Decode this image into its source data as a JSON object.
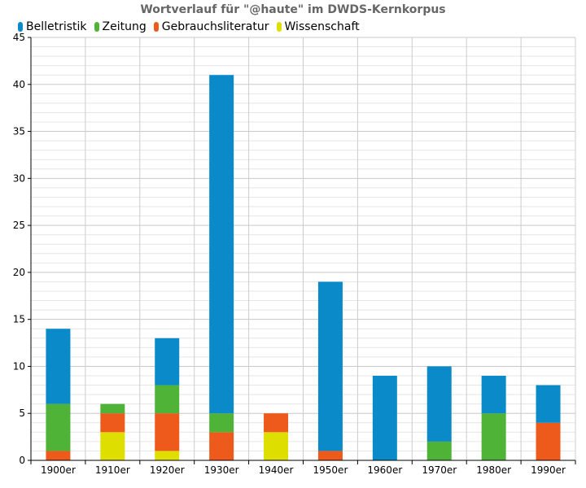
{
  "chart_data": {
    "type": "bar",
    "stacked": true,
    "title": "Wortverlauf für \"@haute\" im DWDS-Kernkorpus",
    "xlabel": "",
    "ylabel": "",
    "ylim": [
      0,
      45
    ],
    "yticks": [
      0,
      5,
      10,
      15,
      20,
      25,
      30,
      35,
      40,
      45
    ],
    "grid": true,
    "legend_position": "top-left",
    "categories": [
      "1900er",
      "1910er",
      "1920er",
      "1930er",
      "1940er",
      "1950er",
      "1960er",
      "1970er",
      "1980er",
      "1990er"
    ],
    "series": [
      {
        "name": "Belletristik",
        "color": "#0a8ac9",
        "values": [
          8,
          0,
          5,
          36,
          0,
          18,
          9,
          8,
          4,
          4
        ]
      },
      {
        "name": "Zeitung",
        "color": "#4fb337",
        "values": [
          5,
          1,
          3,
          2,
          0,
          0,
          0,
          2,
          5,
          0
        ]
      },
      {
        "name": "Gebrauchsliteratur",
        "color": "#ee5a1c",
        "values": [
          1,
          2,
          4,
          3,
          2,
          1,
          0,
          0,
          0,
          4
        ]
      },
      {
        "name": "Wissenschaft",
        "color": "#dede00",
        "values": [
          0,
          3,
          1,
          0,
          3,
          0,
          0,
          0,
          0,
          0
        ]
      }
    ],
    "stack_order_bottom_to_top": [
      "Wissenschaft",
      "Gebrauchsliteratur",
      "Zeitung",
      "Belletristik"
    ]
  }
}
